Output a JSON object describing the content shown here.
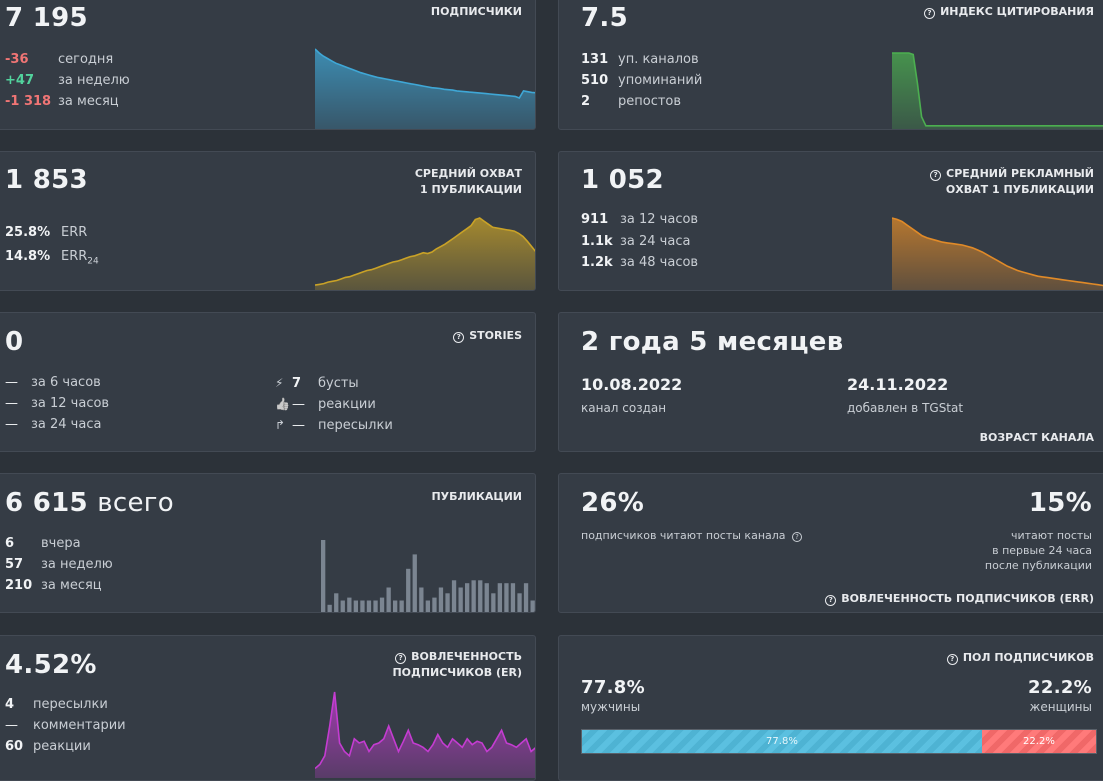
{
  "subscribers": {
    "title": "ПОДПИСЧИКИ",
    "value": "7 195",
    "rows": [
      {
        "value": "-36",
        "label": "сегодня"
      },
      {
        "value": "+47",
        "label": "за неделю"
      },
      {
        "value": "-1 318",
        "label": "за месяц"
      }
    ]
  },
  "citation": {
    "title": "ИНДЕКС ЦИТИРОВАНИЯ",
    "value": "7.5",
    "rows": [
      {
        "value": "131",
        "label": "уп. каналов"
      },
      {
        "value": "510",
        "label": "упоминаний"
      },
      {
        "value": "2",
        "label": "репостов"
      }
    ]
  },
  "reach": {
    "title_line1": "СРЕДНИЙ ОХВАТ",
    "title_line2": "1 ПУБЛИКАЦИИ",
    "value": "1 853",
    "rows": [
      {
        "value": "25.8%",
        "label": "ERR",
        "sub": ""
      },
      {
        "value": "14.8%",
        "label": "ERR",
        "sub": "24"
      }
    ]
  },
  "ad_reach": {
    "title_line1": "СРЕДНИЙ РЕКЛАМНЫЙ",
    "title_line2": "ОХВАТ 1 ПУБЛИКАЦИИ",
    "value": "1 052",
    "rows": [
      {
        "value": "911",
        "label": "за 12 часов"
      },
      {
        "value": "1.1k",
        "label": "за 24 часа"
      },
      {
        "value": "1.2k",
        "label": "за 48 часов"
      }
    ]
  },
  "stories": {
    "title": "STORIES",
    "value": "0",
    "left_rows": [
      {
        "value": "—",
        "label": "за 6 часов"
      },
      {
        "value": "—",
        "label": "за 12 часов"
      },
      {
        "value": "—",
        "label": "за 24 часа"
      }
    ],
    "right_rows": [
      {
        "icon": "⚡",
        "value": "7",
        "label": "бусты"
      },
      {
        "icon": "👍",
        "value": "—",
        "label": "реакции"
      },
      {
        "icon": "↱",
        "value": "—",
        "label": "пересылки"
      }
    ]
  },
  "age": {
    "title": "ВОЗРАСТ КАНАЛА",
    "value": "2 года 5 месяцев",
    "created_date": "10.08.2022",
    "created_label": "канал создан",
    "added_date": "24.11.2022",
    "added_label": "добавлен в TGStat"
  },
  "posts": {
    "title": "ПУБЛИКАЦИИ",
    "value": "6 615",
    "value_unit": "всего",
    "rows": [
      {
        "value": "6",
        "label": "вчера"
      },
      {
        "value": "57",
        "label": "за неделю"
      },
      {
        "value": "210",
        "label": "за месяц"
      }
    ]
  },
  "err_engagement": {
    "title": "ВОВЛЕЧЕННОСТЬ ПОДПИСЧИКОВ (ERR)",
    "left_value": "26%",
    "left_text": "подписчиков читают посты канала",
    "right_value": "15%",
    "right_line1": "читают посты",
    "right_line2": "в первые 24 часа",
    "right_line3": "после публикации"
  },
  "er_engagement": {
    "title_line1": "ВОВЛЕЧЕННОСТЬ",
    "title_line2": "ПОДПИСЧИКОВ (ER)",
    "value": "4.52%",
    "rows": [
      {
        "value": "4",
        "label": "пересылки"
      },
      {
        "value": "—",
        "label": "комментарии"
      },
      {
        "value": "60",
        "label": "реакции"
      }
    ]
  },
  "gender": {
    "title": "ПОЛ ПОДПИСЧИКОВ",
    "male_value": "77.8%",
    "male_label": "мужчины",
    "female_value": "22.2%",
    "female_label": "женщины",
    "male_fraction": 0.778,
    "female_fraction": 0.222
  },
  "chart_data": [
    {
      "type": "area",
      "series": [
        {
          "values": [
            100,
            95,
            91,
            88,
            85,
            82,
            80,
            78,
            76,
            74,
            72,
            70,
            68.5,
            67,
            65.5,
            64,
            63,
            62,
            61,
            60,
            59,
            58,
            57,
            56,
            55,
            54,
            53,
            52,
            51,
            50.5,
            50,
            49,
            48.5,
            48,
            47,
            46.5,
            46,
            45.5,
            45,
            44.5,
            44,
            43.5,
            43,
            42.5,
            42,
            41.5,
            41,
            40.5,
            40,
            38,
            47,
            46,
            45,
            44.5
          ]
        }
      ],
      "color": "#3fa7d6"
    },
    {
      "type": "area",
      "series": [
        {
          "values": [
            100,
            100,
            100,
            100,
            100,
            98,
            60,
            15,
            3,
            3,
            3,
            3,
            3,
            3,
            3,
            3,
            3,
            3,
            3,
            3,
            3,
            3,
            3,
            3,
            3,
            3,
            3,
            3,
            3,
            3,
            3,
            3,
            3,
            3,
            3,
            3,
            3,
            3,
            3,
            3,
            3,
            3,
            3,
            3,
            3,
            3,
            3,
            3,
            3,
            3,
            3,
            3
          ]
        }
      ],
      "color": "#4caf50"
    },
    {
      "type": "area",
      "series": [
        {
          "values": [
            5,
            6,
            7,
            9,
            10,
            11,
            13,
            15,
            16,
            18,
            20,
            22,
            24,
            25,
            27,
            29,
            31,
            33,
            35,
            36,
            38,
            40,
            42,
            43,
            45,
            47,
            46,
            48,
            52,
            55,
            58,
            62,
            66,
            70,
            74,
            78,
            82,
            90,
            92,
            88,
            84,
            80,
            79,
            78,
            77,
            76,
            75,
            72,
            68,
            62,
            55,
            48
          ]
        }
      ],
      "color": "#c9a227"
    },
    {
      "type": "area",
      "series": [
        {
          "values": [
            100,
            98,
            95,
            90,
            85,
            80,
            75,
            72,
            70,
            68,
            66,
            65,
            64,
            63,
            62,
            60,
            58,
            55,
            52,
            48,
            44,
            40,
            36,
            32,
            29,
            26,
            24,
            22,
            20,
            18,
            17,
            16,
            15,
            14,
            13,
            12,
            11,
            10,
            9,
            8,
            7,
            6,
            5,
            4
          ]
        }
      ],
      "color": "#e08a28"
    },
    {
      "type": "bar",
      "values": [
        100,
        10,
        26,
        16,
        20,
        16,
        16,
        16,
        16,
        20,
        34,
        16,
        16,
        60,
        80,
        34,
        16,
        20,
        34,
        26,
        44,
        34,
        40,
        44,
        44,
        40,
        26,
        40,
        40,
        40,
        26,
        40,
        16
      ],
      "color": "#7b8591"
    },
    {
      "type": "area",
      "series": [
        {
          "values": [
            10,
            15,
            25,
            60,
            100,
            40,
            30,
            25,
            45,
            40,
            42,
            30,
            38,
            40,
            45,
            60,
            45,
            30,
            42,
            55,
            40,
            38,
            35,
            30,
            38,
            50,
            40,
            35,
            45,
            40,
            35,
            45,
            38,
            42,
            40,
            30,
            35,
            45,
            55,
            40,
            38,
            35,
            40,
            45,
            30,
            35
          ]
        }
      ],
      "color": "#c43cd1"
    }
  ]
}
